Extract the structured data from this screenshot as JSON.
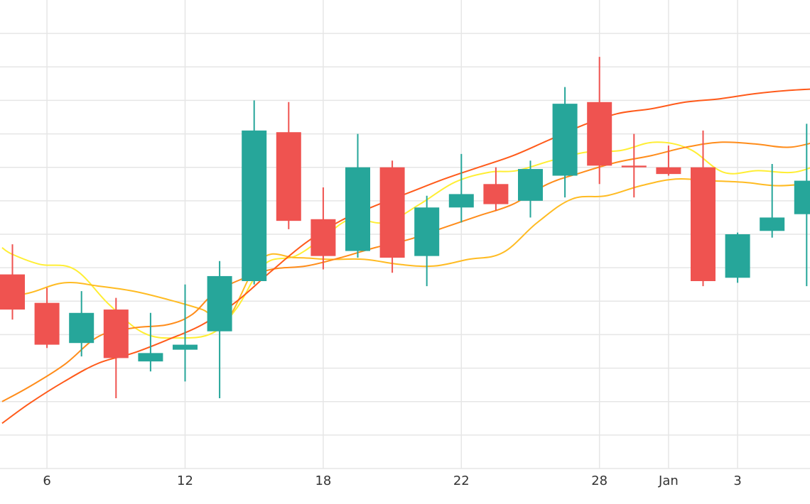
{
  "chart_data": {
    "type": "candlestick",
    "x_ticks": [
      {
        "label": "6",
        "x": 1
      },
      {
        "label": "12",
        "x": 5
      },
      {
        "label": "18",
        "x": 9
      },
      {
        "label": "22",
        "x": 13
      },
      {
        "label": "28",
        "x": 17
      },
      {
        "label": "Jan",
        "x": 19
      },
      {
        "label": "3",
        "x": 21
      }
    ],
    "y_range": [
      0,
      14
    ],
    "y_gridlines": [
      1,
      2,
      3,
      4,
      5,
      6,
      7,
      8,
      9,
      10,
      11,
      12,
      13
    ],
    "grid": true,
    "colors": {
      "up": "#26a69a",
      "down": "#ef5350",
      "grid": "#e6e6e6",
      "ma_fast": "#ffee33",
      "ma_mid": "#ffbb22",
      "ma_slow": "#ff8c1a",
      "ma_long": "#ff5a1a"
    },
    "candles": [
      {
        "x": 0,
        "open": 5.8,
        "high": 6.7,
        "low": 4.45,
        "close": 4.75
      },
      {
        "x": 1,
        "open": 4.95,
        "high": 5.4,
        "low": 3.6,
        "close": 3.7
      },
      {
        "x": 2,
        "open": 3.75,
        "high": 5.3,
        "low": 3.35,
        "close": 4.65
      },
      {
        "x": 3,
        "open": 4.75,
        "high": 5.1,
        "low": 2.1,
        "close": 3.3
      },
      {
        "x": 4,
        "open": 3.2,
        "high": 4.65,
        "low": 2.9,
        "close": 3.45
      },
      {
        "x": 5,
        "open": 3.55,
        "high": 5.5,
        "low": 2.6,
        "close": 3.7
      },
      {
        "x": 6,
        "open": 4.1,
        "high": 6.2,
        "low": 2.1,
        "close": 5.75
      },
      {
        "x": 7,
        "open": 5.6,
        "high": 11.0,
        "low": 5.5,
        "close": 10.1
      },
      {
        "x": 8,
        "open": 10.05,
        "high": 10.95,
        "low": 7.15,
        "close": 7.4
      },
      {
        "x": 9,
        "open": 7.45,
        "high": 8.4,
        "low": 5.95,
        "close": 6.35
      },
      {
        "x": 10,
        "open": 6.5,
        "high": 10.0,
        "low": 6.3,
        "close": 9.0
      },
      {
        "x": 11,
        "open": 9.0,
        "high": 9.2,
        "low": 5.85,
        "close": 6.3
      },
      {
        "x": 12,
        "open": 6.35,
        "high": 8.15,
        "low": 5.45,
        "close": 7.8
      },
      {
        "x": 13,
        "open": 7.8,
        "high": 9.4,
        "low": 7.35,
        "close": 8.2
      },
      {
        "x": 14,
        "open": 8.5,
        "high": 9.0,
        "low": 7.7,
        "close": 7.9
      },
      {
        "x": 15,
        "open": 8.0,
        "high": 9.2,
        "low": 7.5,
        "close": 8.95
      },
      {
        "x": 16,
        "open": 8.75,
        "high": 11.4,
        "low": 8.1,
        "close": 10.9
      },
      {
        "x": 17,
        "open": 10.95,
        "high": 12.3,
        "low": 8.5,
        "close": 9.05
      },
      {
        "x": 18,
        "open": 9.05,
        "high": 10.0,
        "low": 8.1,
        "close": 9.0
      },
      {
        "x": 19,
        "open": 9.0,
        "high": 9.65,
        "low": 8.75,
        "close": 8.8
      },
      {
        "x": 20,
        "open": 9.0,
        "high": 10.1,
        "low": 5.45,
        "close": 5.6
      },
      {
        "x": 21,
        "open": 5.7,
        "high": 7.05,
        "low": 5.55,
        "close": 7.0
      },
      {
        "x": 22,
        "open": 7.1,
        "high": 9.1,
        "low": 6.9,
        "close": 7.5
      },
      {
        "x": 23,
        "open": 7.6,
        "high": 10.3,
        "low": 5.45,
        "close": 8.6
      }
    ],
    "moving_averages": [
      {
        "color_key": "ma_fast",
        "values": [
          {
            "x": -0.3,
            "y": 6.6
          },
          {
            "x": 0,
            "y": 6.4
          },
          {
            "x": 0.8,
            "y": 6.1
          },
          {
            "x": 1.8,
            "y": 5.95
          },
          {
            "x": 2.8,
            "y": 4.9
          },
          {
            "x": 3.8,
            "y": 4.05
          },
          {
            "x": 4.8,
            "y": 3.9
          },
          {
            "x": 5.8,
            "y": 4.05
          },
          {
            "x": 6.5,
            "y": 4.8
          },
          {
            "x": 7.3,
            "y": 6.1
          },
          {
            "x": 8.2,
            "y": 6.35
          },
          {
            "x": 9.0,
            "y": 6.9
          },
          {
            "x": 9.8,
            "y": 7.45
          },
          {
            "x": 10.8,
            "y": 7.35
          },
          {
            "x": 11.8,
            "y": 7.9
          },
          {
            "x": 12.8,
            "y": 8.55
          },
          {
            "x": 13.8,
            "y": 8.85
          },
          {
            "x": 14.6,
            "y": 8.9
          },
          {
            "x": 15.6,
            "y": 9.2
          },
          {
            "x": 16.6,
            "y": 9.45
          },
          {
            "x": 17.6,
            "y": 9.5
          },
          {
            "x": 18.6,
            "y": 9.75
          },
          {
            "x": 19.6,
            "y": 9.55
          },
          {
            "x": 20.6,
            "y": 8.85
          },
          {
            "x": 21.6,
            "y": 8.9
          },
          {
            "x": 22.6,
            "y": 8.85
          },
          {
            "x": 23.4,
            "y": 9.1
          }
        ]
      },
      {
        "color_key": "ma_mid",
        "values": [
          {
            "x": -0.3,
            "y": 5.1
          },
          {
            "x": 0.5,
            "y": 5.25
          },
          {
            "x": 1.5,
            "y": 5.55
          },
          {
            "x": 2.5,
            "y": 5.45
          },
          {
            "x": 3.5,
            "y": 5.3
          },
          {
            "x": 4.5,
            "y": 5.05
          },
          {
            "x": 5.5,
            "y": 4.75
          },
          {
            "x": 6.2,
            "y": 4.45
          },
          {
            "x": 7.2,
            "y": 6.25
          },
          {
            "x": 8.2,
            "y": 6.3
          },
          {
            "x": 9.2,
            "y": 6.25
          },
          {
            "x": 10.2,
            "y": 6.25
          },
          {
            "x": 11.2,
            "y": 6.1
          },
          {
            "x": 12.2,
            "y": 6.05
          },
          {
            "x": 13.2,
            "y": 6.25
          },
          {
            "x": 14.2,
            "y": 6.45
          },
          {
            "x": 15.2,
            "y": 7.35
          },
          {
            "x": 16.2,
            "y": 8.05
          },
          {
            "x": 17.2,
            "y": 8.15
          },
          {
            "x": 18.2,
            "y": 8.45
          },
          {
            "x": 19.2,
            "y": 8.65
          },
          {
            "x": 20.2,
            "y": 8.6
          },
          {
            "x": 21.2,
            "y": 8.55
          },
          {
            "x": 22.2,
            "y": 8.45
          },
          {
            "x": 23.4,
            "y": 8.55
          }
        ]
      },
      {
        "color_key": "ma_slow",
        "values": [
          {
            "x": -0.3,
            "y": 2.0
          },
          {
            "x": 0.5,
            "y": 2.45
          },
          {
            "x": 1.5,
            "y": 3.1
          },
          {
            "x": 2.5,
            "y": 3.95
          },
          {
            "x": 3.5,
            "y": 4.2
          },
          {
            "x": 4.5,
            "y": 4.3
          },
          {
            "x": 5.2,
            "y": 4.6
          },
          {
            "x": 5.8,
            "y": 5.2
          },
          {
            "x": 6.5,
            "y": 5.6
          },
          {
            "x": 7.5,
            "y": 5.95
          },
          {
            "x": 8.5,
            "y": 6.05
          },
          {
            "x": 9.5,
            "y": 6.3
          },
          {
            "x": 10.5,
            "y": 6.6
          },
          {
            "x": 11.5,
            "y": 6.85
          },
          {
            "x": 12.5,
            "y": 7.2
          },
          {
            "x": 13.5,
            "y": 7.55
          },
          {
            "x": 14.5,
            "y": 7.9
          },
          {
            "x": 15.5,
            "y": 8.5
          },
          {
            "x": 16.5,
            "y": 8.85
          },
          {
            "x": 17.5,
            "y": 9.15
          },
          {
            "x": 18.5,
            "y": 9.35
          },
          {
            "x": 19.5,
            "y": 9.6
          },
          {
            "x": 20.5,
            "y": 9.75
          },
          {
            "x": 21.5,
            "y": 9.7
          },
          {
            "x": 22.5,
            "y": 9.6
          },
          {
            "x": 23.4,
            "y": 9.8
          }
        ]
      },
      {
        "color_key": "ma_long",
        "values": [
          {
            "x": -0.3,
            "y": 1.35
          },
          {
            "x": 0.5,
            "y": 1.95
          },
          {
            "x": 1.5,
            "y": 2.6
          },
          {
            "x": 2.5,
            "y": 3.15
          },
          {
            "x": 3.5,
            "y": 3.45
          },
          {
            "x": 4.5,
            "y": 3.85
          },
          {
            "x": 5.5,
            "y": 4.3
          },
          {
            "x": 6.5,
            "y": 5.0
          },
          {
            "x": 7.5,
            "y": 5.9
          },
          {
            "x": 8.5,
            "y": 6.75
          },
          {
            "x": 9.5,
            "y": 7.4
          },
          {
            "x": 10.5,
            "y": 7.85
          },
          {
            "x": 11.5,
            "y": 8.25
          },
          {
            "x": 12.5,
            "y": 8.65
          },
          {
            "x": 13.5,
            "y": 9.0
          },
          {
            "x": 14.5,
            "y": 9.35
          },
          {
            "x": 15.5,
            "y": 9.8
          },
          {
            "x": 16.5,
            "y": 10.25
          },
          {
            "x": 17.5,
            "y": 10.6
          },
          {
            "x": 18.5,
            "y": 10.75
          },
          {
            "x": 19.5,
            "y": 10.95
          },
          {
            "x": 20.5,
            "y": 11.05
          },
          {
            "x": 21.5,
            "y": 11.2
          },
          {
            "x": 22.5,
            "y": 11.3
          },
          {
            "x": 23.4,
            "y": 11.35
          }
        ]
      }
    ]
  }
}
